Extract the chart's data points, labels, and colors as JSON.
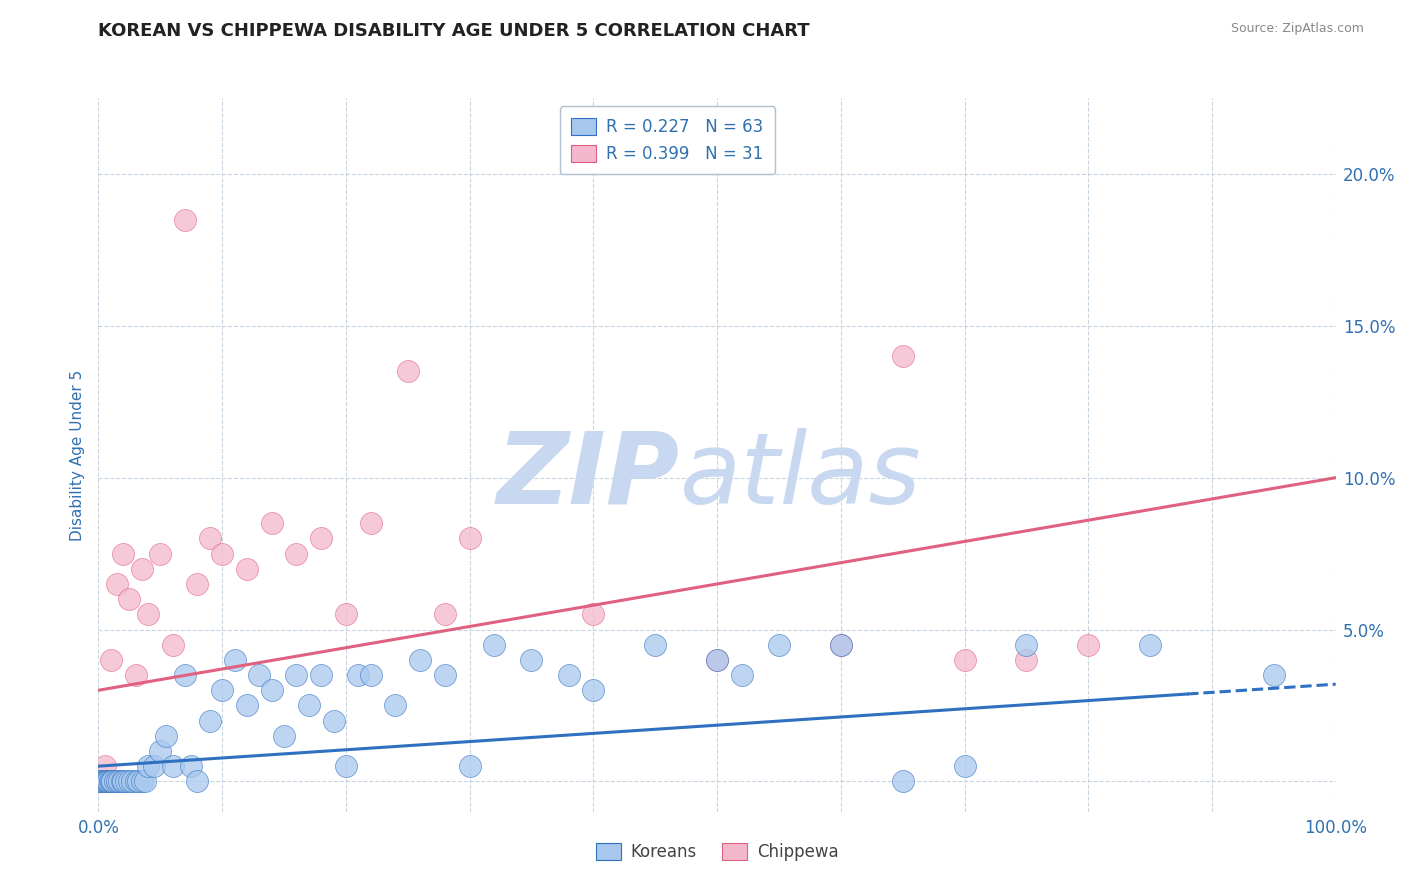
{
  "title": "KOREAN VS CHIPPEWA DISABILITY AGE UNDER 5 CORRELATION CHART",
  "source_text": "Source: ZipAtlas.com",
  "ylabel": "Disability Age Under 5",
  "xlim": [
    0.0,
    100.0
  ],
  "ylim": [
    -1.0,
    22.5
  ],
  "x_ticks": [
    0.0,
    10.0,
    20.0,
    30.0,
    40.0,
    50.0,
    60.0,
    70.0,
    80.0,
    90.0,
    100.0
  ],
  "y_ticks": [
    0.0,
    5.0,
    10.0,
    15.0,
    20.0
  ],
  "korean_R": 0.227,
  "korean_N": 63,
  "chippewa_R": 0.399,
  "chippewa_N": 31,
  "korean_color": "#a8c8ee",
  "chippewa_color": "#f4b8cc",
  "korean_line_color": "#3070c0",
  "chippewa_line_color": "#e06080",
  "watermark_zip": "ZIP",
  "watermark_atlas": "atlas",
  "watermark_zip_color": "#c8d8f0",
  "watermark_atlas_color": "#c8d8f0",
  "background_color": "#ffffff",
  "title_color": "#222222",
  "source_color": "#888888",
  "axis_label_color": "#3070b0",
  "tick_color": "#3070b0",
  "grid_color": "#c8d4e0",
  "korean_line_intercept": 0.5,
  "korean_line_slope": 0.027,
  "chippewa_line_intercept": 3.0,
  "chippewa_line_slope": 0.07,
  "korean_x": [
    0.1,
    0.2,
    0.3,
    0.4,
    0.5,
    0.6,
    0.7,
    0.8,
    0.9,
    1.0,
    1.1,
    1.3,
    1.5,
    1.7,
    1.9,
    2.0,
    2.2,
    2.5,
    2.7,
    3.0,
    3.2,
    3.5,
    3.8,
    4.0,
    4.5,
    5.0,
    5.5,
    6.0,
    7.0,
    7.5,
    8.0,
    9.0,
    10.0,
    11.0,
    12.0,
    13.0,
    14.0,
    15.0,
    16.0,
    17.0,
    18.0,
    19.0,
    20.0,
    21.0,
    22.0,
    24.0,
    26.0,
    28.0,
    30.0,
    32.0,
    35.0,
    38.0,
    40.0,
    45.0,
    50.0,
    52.0,
    55.0,
    60.0,
    65.0,
    70.0,
    75.0,
    85.0,
    95.0
  ],
  "korean_y": [
    0.0,
    0.0,
    0.0,
    0.0,
    0.0,
    0.0,
    0.0,
    0.0,
    0.0,
    0.0,
    0.0,
    0.0,
    0.0,
    0.0,
    0.0,
    0.0,
    0.0,
    0.0,
    0.0,
    0.0,
    0.0,
    0.0,
    0.0,
    0.5,
    0.5,
    1.0,
    1.5,
    0.5,
    3.5,
    0.5,
    0.0,
    2.0,
    3.0,
    4.0,
    2.5,
    3.5,
    3.0,
    1.5,
    3.5,
    2.5,
    3.5,
    2.0,
    0.5,
    3.5,
    3.5,
    2.5,
    4.0,
    3.5,
    0.5,
    4.5,
    4.0,
    3.5,
    3.0,
    4.5,
    4.0,
    3.5,
    4.5,
    4.5,
    0.0,
    0.5,
    4.5,
    4.5,
    3.5
  ],
  "chippewa_x": [
    0.1,
    0.5,
    1.0,
    1.5,
    2.0,
    2.5,
    3.0,
    3.5,
    4.0,
    5.0,
    6.0,
    7.0,
    8.0,
    9.0,
    10.0,
    12.0,
    14.0,
    16.0,
    18.0,
    20.0,
    22.0,
    25.0,
    28.0,
    30.0,
    40.0,
    50.0,
    60.0,
    65.0,
    70.0,
    75.0,
    80.0
  ],
  "chippewa_y": [
    0.0,
    0.5,
    4.0,
    6.5,
    7.5,
    6.0,
    3.5,
    7.0,
    5.5,
    7.5,
    4.5,
    18.5,
    6.5,
    8.0,
    7.5,
    7.0,
    8.5,
    7.5,
    8.0,
    5.5,
    8.5,
    13.5,
    5.5,
    8.0,
    5.5,
    4.0,
    4.5,
    14.0,
    4.0,
    4.0,
    4.5
  ]
}
